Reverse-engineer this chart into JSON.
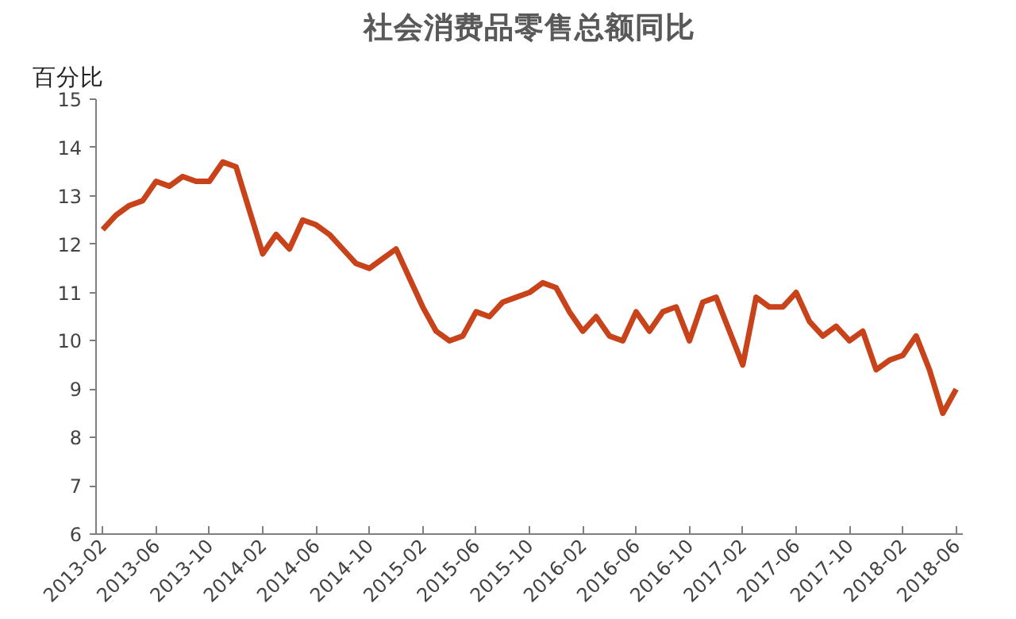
{
  "chart_data": {
    "type": "line",
    "title": "社会消费品零售总额同比",
    "ylabel": "百分比",
    "categories": [
      "2013-02",
      null,
      null,
      null,
      "2013-06",
      null,
      null,
      null,
      "2013-10",
      null,
      null,
      null,
      "2014-02",
      null,
      null,
      null,
      "2014-06",
      null,
      null,
      null,
      "2014-10",
      null,
      null,
      null,
      "2015-02",
      null,
      null,
      null,
      "2015-06",
      null,
      null,
      null,
      "2015-10",
      null,
      null,
      null,
      "2016-02",
      null,
      null,
      null,
      "2016-06",
      null,
      null,
      null,
      "2016-10",
      null,
      null,
      null,
      "2017-02",
      null,
      null,
      null,
      "2017-06",
      null,
      null,
      null,
      "2017-10",
      null,
      null,
      null,
      "2018-02",
      null,
      null,
      null,
      "2018-06"
    ],
    "series": [
      {
        "color": "#c8421a",
        "values": [
          12.3,
          12.6,
          12.8,
          12.9,
          13.3,
          13.2,
          13.4,
          13.3,
          13.3,
          13.7,
          13.6,
          12.7,
          11.8,
          12.2,
          11.9,
          12.5,
          12.4,
          12.2,
          11.9,
          11.6,
          11.5,
          11.7,
          11.9,
          11.3,
          10.7,
          10.2,
          10.0,
          10.1,
          10.6,
          10.5,
          10.8,
          10.9,
          11.0,
          11.2,
          11.1,
          10.6,
          10.2,
          10.5,
          10.1,
          10.0,
          10.6,
          10.2,
          10.6,
          10.7,
          10.0,
          10.8,
          10.9,
          10.2,
          9.5,
          10.9,
          10.7,
          10.7,
          11.0,
          10.4,
          10.1,
          10.3,
          10.0,
          10.2,
          9.4,
          9.6,
          9.7,
          10.1,
          9.4,
          8.5,
          9.0
        ]
      }
    ],
    "ylim": [
      6,
      15
    ],
    "yticks": [
      6,
      7,
      8,
      9,
      10,
      11,
      12,
      13,
      14,
      15
    ],
    "grid": false,
    "marker": "none",
    "line_style": "solid"
  }
}
